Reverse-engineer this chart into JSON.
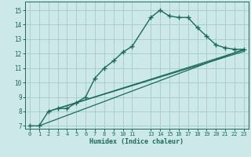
{
  "bg_color": "#cce8e8",
  "grid_color": "#aacece",
  "line_color": "#1a6b5a",
  "xlabel": "Humidex (Indice chaleur)",
  "ylim": [
    6.8,
    15.6
  ],
  "xlim": [
    -0.5,
    23.5
  ],
  "yticks": [
    7,
    8,
    9,
    10,
    11,
    12,
    13,
    14,
    15
  ],
  "xtick_vals": [
    0,
    1,
    2,
    3,
    4,
    5,
    6,
    7,
    8,
    9,
    10,
    11,
    13,
    14,
    15,
    16,
    17,
    18,
    19,
    20,
    21,
    22,
    23
  ],
  "xtick_labels": [
    "0",
    "1",
    "2",
    "3",
    "4",
    "5",
    "6",
    "7",
    "8",
    "9",
    "10",
    "11",
    "13",
    "14",
    "15",
    "16",
    "17",
    "18",
    "19",
    "20",
    "21",
    "22",
    "23"
  ],
  "series1_x": [
    0,
    1,
    2,
    3,
    4,
    5,
    6,
    7,
    8,
    9,
    10,
    11,
    13,
    14,
    15,
    16,
    17,
    18,
    19,
    20,
    21,
    22,
    23
  ],
  "series1_y": [
    7.0,
    7.0,
    8.0,
    8.2,
    8.2,
    8.6,
    9.0,
    10.3,
    11.0,
    11.5,
    12.1,
    12.5,
    14.5,
    15.0,
    14.6,
    14.5,
    14.5,
    13.8,
    13.2,
    12.6,
    12.4,
    12.3,
    12.3
  ],
  "series2_x": [
    1,
    23
  ],
  "series2_y": [
    7.0,
    12.3
  ],
  "series3_x": [
    2,
    23
  ],
  "series3_y": [
    8.0,
    12.25
  ],
  "series4_x": [
    3,
    23
  ],
  "series4_y": [
    8.2,
    12.15
  ]
}
